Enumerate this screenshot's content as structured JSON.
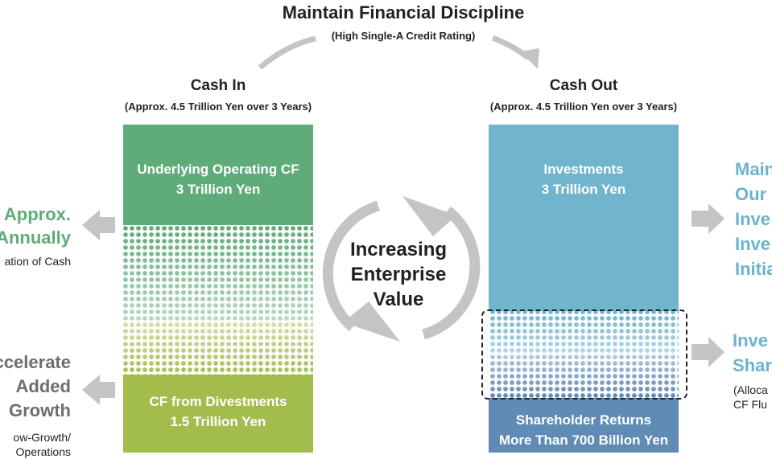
{
  "header": {
    "title": "Maintain Financial Discipline",
    "subtitle": "(High Single-A Credit Rating)"
  },
  "cash_in": {
    "heading": "Cash In",
    "sub": "(Approx. 4.5 Trillion Yen over 3 Years)",
    "box_top": {
      "line1": "Underlying Operating CF",
      "line2": "3 Trillion Yen"
    },
    "box_bottom": {
      "line1": "CF from Divestments",
      "line2": "1.5 Trillion Yen"
    }
  },
  "cash_out": {
    "heading": "Cash Out",
    "sub": "(Approx. 4.5 Trillion Yen over 3 Years)",
    "box_top": {
      "line1": "Investments",
      "line2": "3 Trillion Yen"
    },
    "box_bottom": {
      "line1": "Shareholder Returns",
      "line2": "More Than 700 Billion Yen"
    }
  },
  "center": {
    "line1": "Increasing",
    "line2": "Enterprise",
    "line3": "Value"
  },
  "left_labels": {
    "upper": {
      "line1": "Approx.",
      "line2": "Annually",
      "small": "ation of Cash"
    },
    "lower": {
      "line1": "ccelerate",
      "line2": "Added",
      "line3": "Growth",
      "small1": "ow-Growth/",
      "small2": "Operations"
    }
  },
  "right_labels": {
    "upper": {
      "line1": "Main",
      "line2": "Our",
      "line3": "Inve",
      "line4": "Inve",
      "line5": "Initia"
    },
    "lower": {
      "line1": "Inve",
      "line2": "Shar",
      "small1": "(Alloca",
      "small2": "CF Flu"
    }
  },
  "colors": {
    "green": "#5fab7a",
    "olive": "#a3bd4d",
    "blue": "#71b5cd",
    "steel": "#5f8bb5",
    "arrow_grey": "#c3c4c6"
  }
}
